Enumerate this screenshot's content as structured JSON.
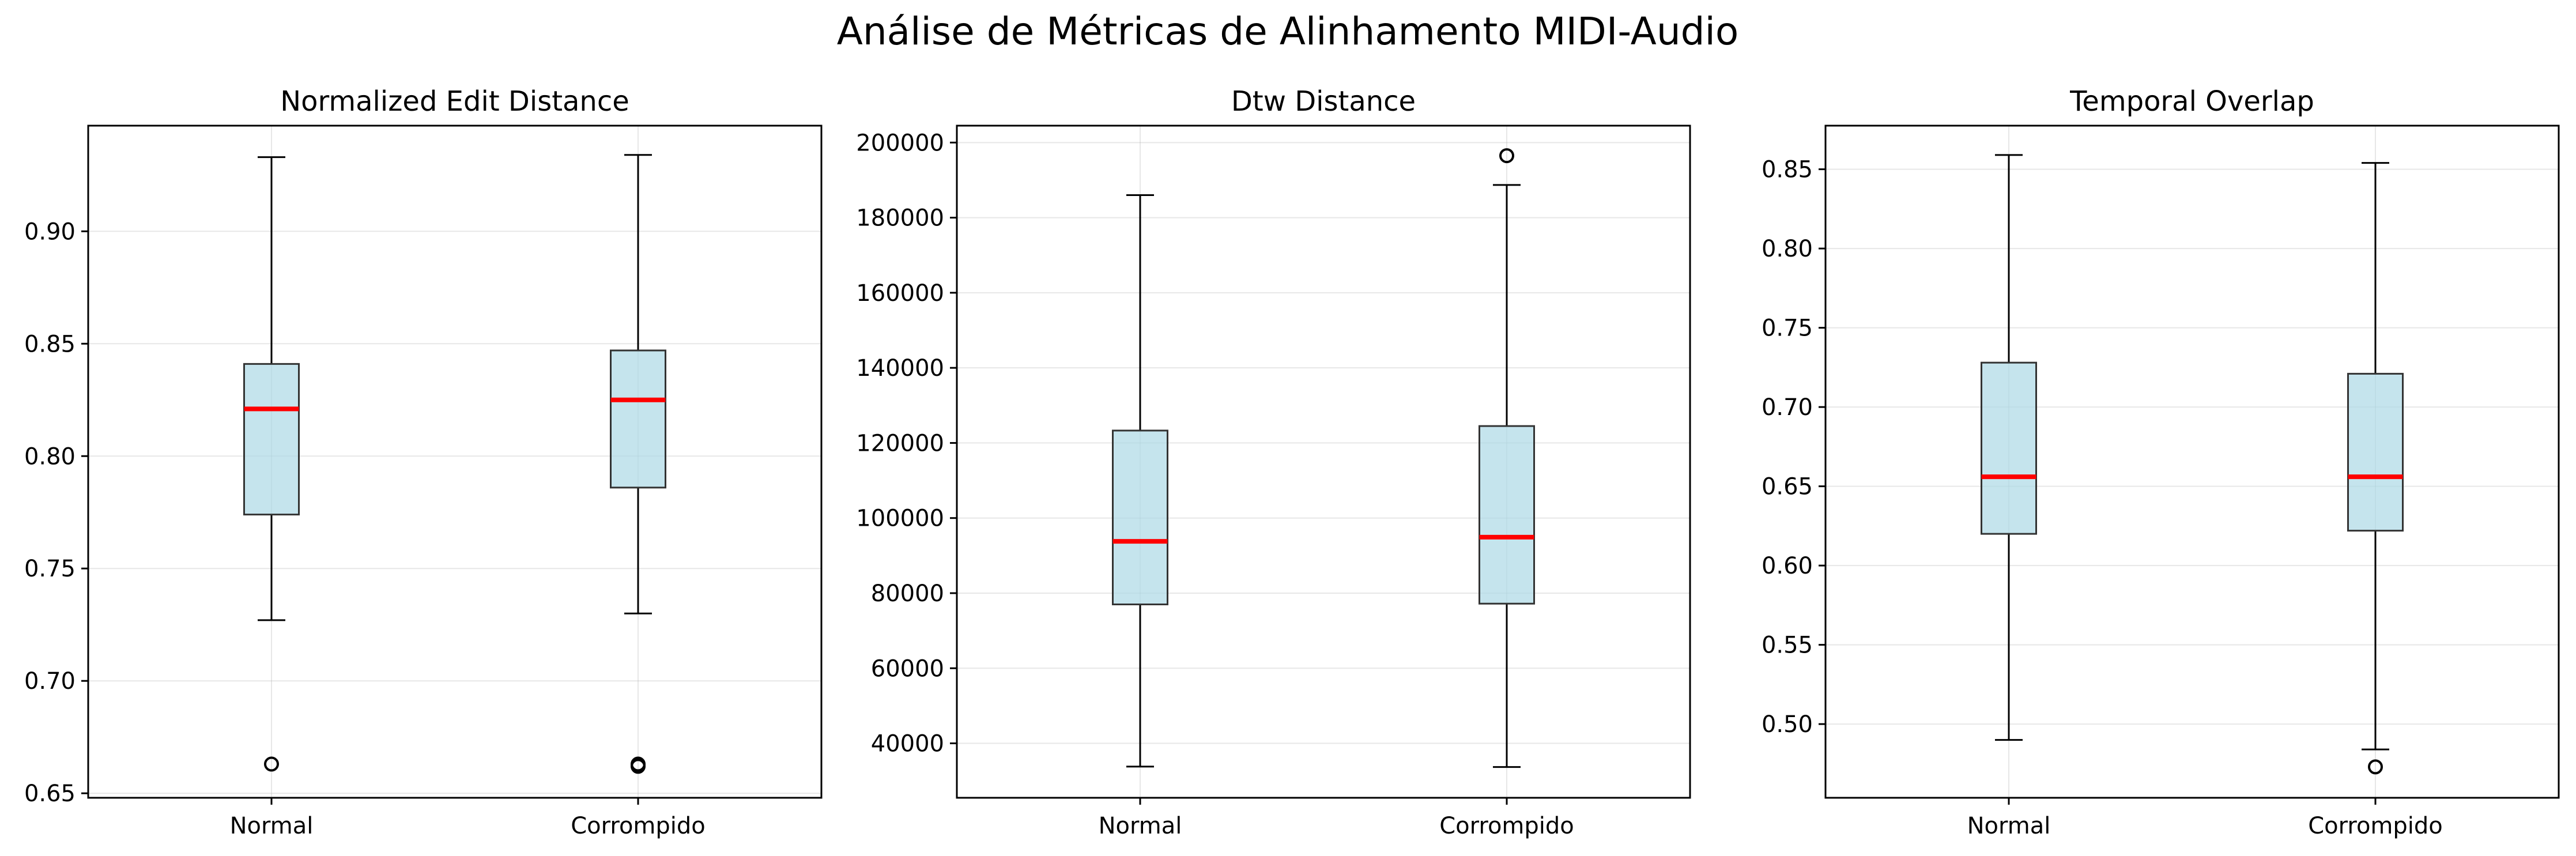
{
  "title": "Análise de Métricas de Alinhamento MIDI-Audio",
  "chart_data": [
    {
      "type": "box",
      "title": "Normalized Edit Distance",
      "categories": [
        "Normal",
        "Corrompido"
      ],
      "ylim": [
        0.648,
        0.947
      ],
      "yticks": [
        0.65,
        0.7,
        0.75,
        0.8,
        0.85,
        0.9
      ],
      "ytick_labels": [
        "0.65",
        "0.70",
        "0.75",
        "0.80",
        "0.85",
        "0.90"
      ],
      "grid": true,
      "boxes": [
        {
          "whislo": 0.727,
          "q1": 0.774,
          "med": 0.821,
          "q3": 0.841,
          "whishi": 0.933,
          "fliers": [
            0.663
          ]
        },
        {
          "whislo": 0.73,
          "q1": 0.786,
          "med": 0.825,
          "q3": 0.847,
          "whishi": 0.934,
          "fliers": [
            0.662,
            0.663
          ]
        }
      ]
    },
    {
      "type": "box",
      "title": "Dtw Distance",
      "categories": [
        "Normal",
        "Corrompido"
      ],
      "ylim": [
        25500,
        204500
      ],
      "yticks": [
        40000,
        60000,
        80000,
        100000,
        120000,
        140000,
        160000,
        180000,
        200000
      ],
      "ytick_labels": [
        "40000",
        "60000",
        "80000",
        "100000",
        "120000",
        "140000",
        "160000",
        "180000",
        "200000"
      ],
      "grid": true,
      "boxes": [
        {
          "whislo": 33800,
          "q1": 77000,
          "med": 93800,
          "q3": 123300,
          "whishi": 186000,
          "fliers": []
        },
        {
          "whislo": 33700,
          "q1": 77200,
          "med": 94900,
          "q3": 124500,
          "whishi": 188700,
          "fliers": [
            196500
          ]
        }
      ]
    },
    {
      "type": "box",
      "title": "Temporal Overlap",
      "categories": [
        "Normal",
        "Corrompido"
      ],
      "ylim": [
        0.4535,
        0.8775
      ],
      "yticks": [
        0.5,
        0.55,
        0.6,
        0.65,
        0.7,
        0.75,
        0.8,
        0.85
      ],
      "ytick_labels": [
        "0.50",
        "0.55",
        "0.60",
        "0.65",
        "0.70",
        "0.75",
        "0.80",
        "0.85"
      ],
      "grid": true,
      "boxes": [
        {
          "whislo": 0.49,
          "q1": 0.62,
          "med": 0.656,
          "q3": 0.728,
          "whishi": 0.859,
          "fliers": []
        },
        {
          "whislo": 0.484,
          "q1": 0.622,
          "med": 0.656,
          "q3": 0.721,
          "whishi": 0.854,
          "fliers": [
            0.473
          ]
        }
      ]
    }
  ]
}
